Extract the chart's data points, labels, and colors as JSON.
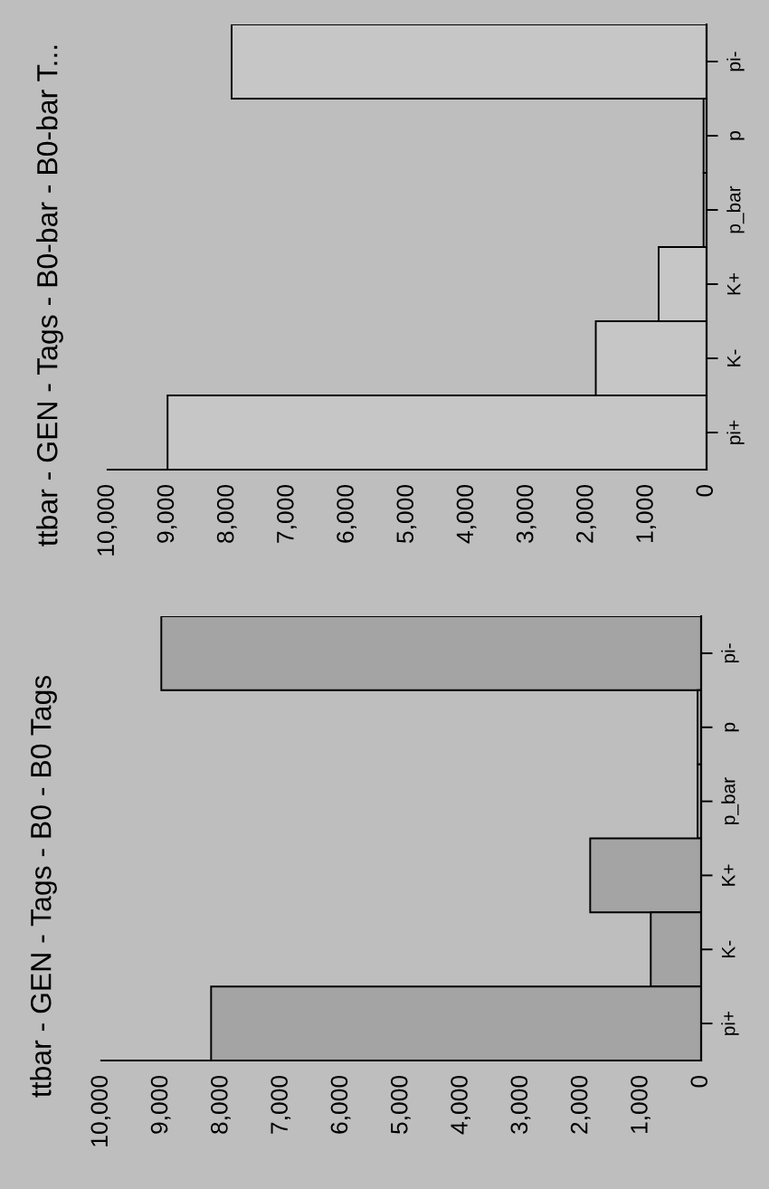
{
  "chart_data": [
    {
      "type": "bar",
      "orientation": "horizontal",
      "title": "ttbar - GEN - Tags - B0-bar - B0-bar T...",
      "categories": [
        "pi-",
        "p",
        "p_bar",
        "K+",
        "K-",
        "pi+"
      ],
      "values": [
        7930,
        50,
        50,
        800,
        1850,
        9000
      ],
      "color": "#c6c6c6",
      "xlim": [
        10000,
        0
      ],
      "xticks": [
        {
          "value": 10000,
          "label": "10,000"
        },
        {
          "value": 9000,
          "label": "9,000"
        },
        {
          "value": 8000,
          "label": "8,000"
        },
        {
          "value": 7000,
          "label": "7,000"
        },
        {
          "value": 6000,
          "label": "6,000"
        },
        {
          "value": 5000,
          "label": "5,000"
        },
        {
          "value": 4000,
          "label": "4,000"
        },
        {
          "value": 3000,
          "label": "3,000"
        },
        {
          "value": 2000,
          "label": "2,000"
        },
        {
          "value": 1000,
          "label": "1,000"
        },
        0
      ]
    },
    {
      "type": "bar",
      "orientation": "horizontal",
      "title": "ttbar - GEN - Tags - B0 - B0 Tags",
      "categories": [
        "pi-",
        "p",
        "p_bar",
        "K+",
        "K-",
        "pi+"
      ],
      "values": [
        9000,
        60,
        60,
        1850,
        840,
        8170
      ],
      "color": "#a4a4a4",
      "xlim": [
        10000,
        0
      ],
      "xticks": [
        {
          "value": 10000,
          "label": "10,000"
        },
        {
          "value": 9000,
          "label": "9,000"
        },
        {
          "value": 8000,
          "label": "8,000"
        },
        {
          "value": 7000,
          "label": "7,000"
        },
        {
          "value": 6000,
          "label": "6,000"
        },
        {
          "value": 5000,
          "label": "5,000"
        },
        {
          "value": 4000,
          "label": "4,000"
        },
        {
          "value": 3000,
          "label": "3,000"
        },
        {
          "value": 2000,
          "label": "2,000"
        },
        {
          "value": 1000,
          "label": "1,000"
        },
        0
      ]
    }
  ]
}
